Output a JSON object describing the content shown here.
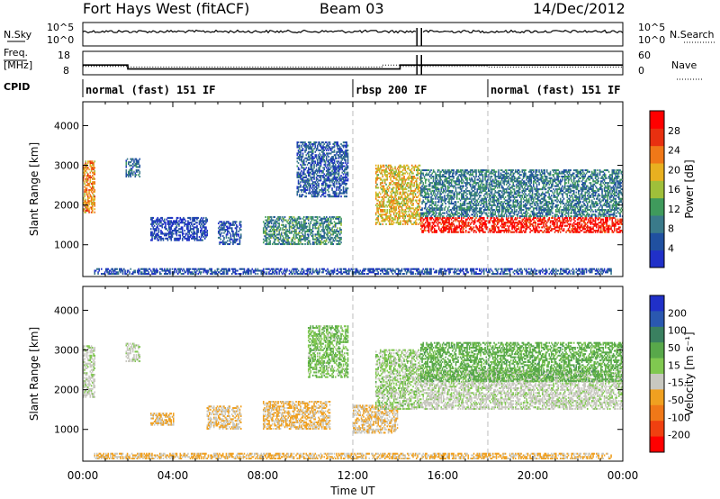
{
  "header": {
    "title": "Fort Hays West (fitACF)",
    "beam": "Beam 03",
    "date": "14/Dec/2012"
  },
  "colors": {
    "power_scale": [
      "#2030c8",
      "#2050a0",
      "#3a7a8a",
      "#3f9a5c",
      "#9fbf3a",
      "#e8b020",
      "#f07818",
      "#e83010",
      "#ff0000"
    ],
    "velocity_scale": [
      "#2030c8",
      "#2a58b0",
      "#3a8060",
      "#58a84a",
      "#80c850",
      "#c8c8c0",
      "#f0a020",
      "#f07818",
      "#f04010",
      "#ff0000"
    ],
    "velocity_ground": "#c8c8c0"
  },
  "chart_data": [
    {
      "type": "line",
      "panel": "noise",
      "left_label": [
        "N.Sky"
      ],
      "right_label": [
        "N.Search"
      ],
      "left_ticks": [
        "10^5",
        "10^0"
      ],
      "right_ticks": [
        "10^5",
        "10^0"
      ],
      "series": [
        {
          "name": "N.Sky",
          "style": "solid",
          "level": 0.8
        },
        {
          "name": "N.Search",
          "style": "dotted",
          "level": 0.8
        }
      ],
      "gap": [
        14.85,
        15.05
      ]
    },
    {
      "type": "line",
      "panel": "frequency",
      "left_label": [
        "Freq.",
        "[MHz]"
      ],
      "right_label": [
        "Nave"
      ],
      "left_ticks": [
        "18",
        "8"
      ],
      "right_ticks": [
        "60",
        "0"
      ],
      "left_range": [
        8,
        18
      ],
      "right_range": [
        0,
        60
      ],
      "freq": {
        "x": [
          0,
          2.0,
          2.0,
          14.1,
          14.1,
          14.85,
          15.05,
          24
        ],
        "y": [
          12,
          12,
          10,
          10,
          12,
          12,
          12,
          12
        ]
      },
      "nave": {
        "x": [
          0,
          2.0,
          2.0,
          13.3,
          13.3,
          14.1,
          14.1,
          18.0,
          18.0,
          24
        ],
        "y": [
          20,
          20,
          18,
          18,
          24,
          24,
          20,
          20,
          18,
          18
        ]
      }
    },
    {
      "type": "table",
      "panel": "cpid",
      "label": "CPID",
      "segments": [
        {
          "start": 0,
          "name": "normal (fast) 151 IF"
        },
        {
          "start": 12,
          "name": "rbsp 200 IF"
        },
        {
          "start": 18,
          "name": "normal (fast) 151 IF"
        }
      ]
    },
    {
      "type": "heatmap",
      "panel": "power",
      "ylabel": "Slant Range [km]",
      "yticks": [
        1000,
        2000,
        3000,
        4000
      ],
      "ylim": [
        200,
        4600
      ],
      "xlim": [
        0,
        24
      ],
      "colorbar": {
        "label": "Power [dB]",
        "ticks": [
          4,
          8,
          12,
          16,
          20,
          24,
          28
        ]
      },
      "regions": [
        {
          "x": [
            0.0,
            0.5
          ],
          "r": [
            1800,
            3100
          ],
          "level": 0.7
        },
        {
          "x": [
            1.9,
            2.5
          ],
          "r": [
            2700,
            3150
          ],
          "level": 0.2
        },
        {
          "x": [
            3.0,
            5.5
          ],
          "r": [
            1100,
            1700
          ],
          "level": 0.05
        },
        {
          "x": [
            6.0,
            7.0
          ],
          "r": [
            1000,
            1600
          ],
          "level": 0.1
        },
        {
          "x": [
            8.0,
            11.5
          ],
          "r": [
            1000,
            1700
          ],
          "level": 0.3
        },
        {
          "x": [
            9.5,
            11.8
          ],
          "r": [
            2200,
            3600
          ],
          "level": 0.15
        },
        {
          "x": [
            13.0,
            15.0
          ],
          "r": [
            1500,
            3000
          ],
          "level": 0.6
        },
        {
          "x": [
            15.0,
            24.0
          ],
          "r": [
            1300,
            1700
          ],
          "level": 0.95
        },
        {
          "x": [
            15.0,
            24.0
          ],
          "r": [
            1700,
            2900
          ],
          "level": 0.25
        },
        {
          "x": [
            0.5,
            23.5
          ],
          "r": [
            250,
            400
          ],
          "level": 0.1
        }
      ]
    },
    {
      "type": "heatmap",
      "panel": "velocity",
      "xlabel": "Time UT",
      "ylabel": "Slant Range [km]",
      "yticks": [
        1000,
        2000,
        3000,
        4000
      ],
      "ylim": [
        200,
        4600
      ],
      "xlim": [
        0,
        24
      ],
      "xticks": [
        "00:00",
        "04:00",
        "08:00",
        "12:00",
        "16:00",
        "20:00",
        "00:00"
      ],
      "colorbar": {
        "label": "Velocity [m s⁻¹]",
        "ticks": [
          200,
          100,
          50,
          15,
          -15,
          -50,
          -100,
          -200
        ]
      },
      "regions": [
        {
          "x": [
            0.0,
            0.5
          ],
          "r": [
            1800,
            3100
          ],
          "v": 0
        },
        {
          "x": [
            1.9,
            2.5
          ],
          "r": [
            2700,
            3150
          ],
          "v": 0
        },
        {
          "x": [
            3.0,
            4.0
          ],
          "r": [
            1100,
            1400
          ],
          "v": -50
        },
        {
          "x": [
            5.5,
            7.0
          ],
          "r": [
            1000,
            1600
          ],
          "v": -40
        },
        {
          "x": [
            8.0,
            11.0
          ],
          "r": [
            1000,
            1700
          ],
          "v": -50
        },
        {
          "x": [
            10.0,
            11.8
          ],
          "r": [
            2300,
            3600
          ],
          "v": 40
        },
        {
          "x": [
            12.0,
            14.0
          ],
          "r": [
            900,
            1600
          ],
          "v": -40
        },
        {
          "x": [
            13.0,
            15.0
          ],
          "r": [
            1500,
            3000
          ],
          "v": 20
        },
        {
          "x": [
            15.0,
            24.0
          ],
          "r": [
            1500,
            2500
          ],
          "v": 0
        },
        {
          "x": [
            15.0,
            24.0
          ],
          "r": [
            2200,
            3200
          ],
          "v": 60
        },
        {
          "x": [
            0.5,
            23.5
          ],
          "r": [
            250,
            400
          ],
          "v": -50
        }
      ]
    }
  ]
}
